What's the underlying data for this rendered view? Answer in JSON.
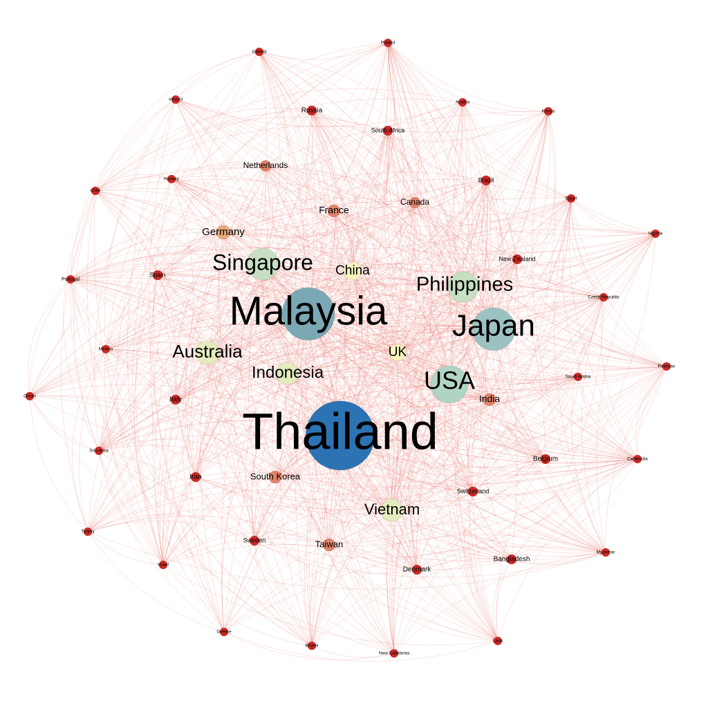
{
  "graph": {
    "type": "network",
    "palette": {
      "edge": "#e0584a",
      "tier_colors": {
        "1": "#cd2a26",
        "2": "#e2836a",
        "3": "#e6a878",
        "4": "#f7f3bd",
        "5": "#e3ecbe",
        "6": "#c6dfc2",
        "7": "#b1d3c3",
        "8": "#9cc1c1",
        "9": "#7aa9b5",
        "10": "#2c73b4"
      }
    },
    "nodes": [
      {
        "id": "thailand",
        "label": "Thailand",
        "tier": 10
      },
      {
        "id": "malaysia",
        "label": "Malaysia",
        "tier": 9
      },
      {
        "id": "japan",
        "label": "Japan",
        "tier": 8
      },
      {
        "id": "usa",
        "label": "USA",
        "tier": 7
      },
      {
        "id": "singapore",
        "label": "Singapore",
        "tier": 6
      },
      {
        "id": "philippines",
        "label": "Philippines",
        "tier": 6
      },
      {
        "id": "australia",
        "label": "Australia",
        "tier": 5
      },
      {
        "id": "indonesia",
        "label": "Indonesia",
        "tier": 5
      },
      {
        "id": "vietnam",
        "label": "Vietnam",
        "tier": 5
      },
      {
        "id": "china",
        "label": "China",
        "tier": 4
      },
      {
        "id": "uk",
        "label": "UK",
        "tier": 4
      },
      {
        "id": "germany",
        "label": "Germany",
        "tier": 3
      },
      {
        "id": "france",
        "label": "France",
        "tier": 2
      },
      {
        "id": "india",
        "label": "India",
        "tier": 2
      },
      {
        "id": "south_korea",
        "label": "South Korea",
        "tier": 2
      },
      {
        "id": "taiwan",
        "label": "Taiwan",
        "tier": 2
      },
      {
        "id": "netherlands",
        "label": "Netherlands",
        "tier": 2
      },
      {
        "id": "canada",
        "label": "Canada",
        "tier": 2
      },
      {
        "id": "russia",
        "label": "Russia",
        "tier": 1
      },
      {
        "id": "south_africa",
        "label": "South Africa",
        "tier": 1
      },
      {
        "id": "brazil",
        "label": "Brazil",
        "tier": 1
      },
      {
        "id": "new_zealand",
        "label": "New Zealand",
        "tier": 1
      },
      {
        "id": "spain",
        "label": "Spain",
        "tier": 1
      },
      {
        "id": "italy",
        "label": "Italy",
        "tier": 1
      },
      {
        "id": "iran",
        "label": "Iran",
        "tier": 1
      },
      {
        "id": "belgium",
        "label": "Belgium",
        "tier": 1
      },
      {
        "id": "switzerland",
        "label": "Switzerland",
        "tier": 1
      },
      {
        "id": "sweden",
        "label": "Sweden",
        "tier": 1
      },
      {
        "id": "denmark",
        "label": "Denmark",
        "tier": 1
      },
      {
        "id": "bangladesh",
        "label": "Bangladesh",
        "tier": 1
      },
      {
        "id": "iceland",
        "label": "Iceland",
        "tier": 1
      },
      {
        "id": "poland",
        "label": "Poland",
        "tier": 1
      },
      {
        "id": "ireland",
        "label": "Ireland",
        "tier": 1
      },
      {
        "id": "austria",
        "label": "Austria",
        "tier": 1
      },
      {
        "id": "kenya",
        "label": "Kenya",
        "tier": 1
      },
      {
        "id": "norway",
        "label": "Norway",
        "tier": 1
      },
      {
        "id": "chile",
        "label": "Chile",
        "tier": 1
      },
      {
        "id": "egypt",
        "label": "Egypt",
        "tier": 1
      },
      {
        "id": "nigeria",
        "label": "Nigeria",
        "tier": 1
      },
      {
        "id": "portugal",
        "label": "Portugal",
        "tier": 1
      },
      {
        "id": "czech_republic",
        "label": "Czech Republic",
        "tier": 1
      },
      {
        "id": "mexico",
        "label": "Mexico",
        "tier": 1
      },
      {
        "id": "pakistan",
        "label": "Pakistan",
        "tier": 1
      },
      {
        "id": "saudi_arabia",
        "label": "Saudi Arabia",
        "tier": 1
      },
      {
        "id": "oman",
        "label": "Oman",
        "tier": 1
      },
      {
        "id": "sri_lanka",
        "label": "Sri Lanka",
        "tier": 1
      },
      {
        "id": "cambodia",
        "label": "Cambodia",
        "tier": 1
      },
      {
        "id": "turkey",
        "label": "Turkey",
        "tier": 1
      },
      {
        "id": "israel",
        "label": "Israel",
        "tier": 1
      },
      {
        "id": "myanmar",
        "label": "Myanmar",
        "tier": 1
      },
      {
        "id": "greece",
        "label": "Greece",
        "tier": 1
      },
      {
        "id": "brunei",
        "label": "Brunei",
        "tier": 1
      },
      {
        "id": "laos",
        "label": "Laos",
        "tier": 1
      },
      {
        "id": "new_caledonia",
        "label": "New Caledonia",
        "tier": 1
      }
    ]
  }
}
